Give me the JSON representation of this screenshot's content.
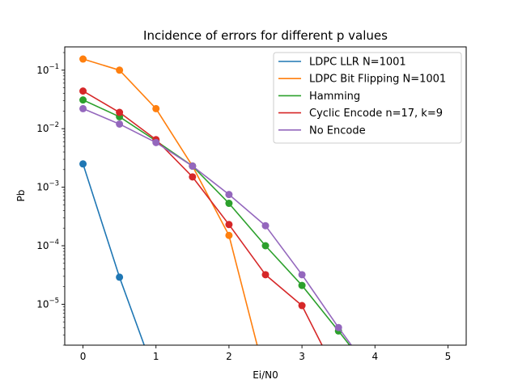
{
  "chart_data": {
    "type": "line",
    "title": "Incidence of errors for different p values",
    "xlabel": "Ei/N0",
    "ylabel": "Pb",
    "xlim": [
      -0.25,
      5.25
    ],
    "ylim": [
      2e-06,
      0.25
    ],
    "yscale": "log",
    "x_ticks": [
      0,
      1,
      2,
      3,
      4,
      5
    ],
    "x_tick_labels": [
      "0",
      "1",
      "2",
      "3",
      "4",
      "5"
    ],
    "y_ticks": [
      1e-05,
      0.0001,
      0.001,
      0.01,
      0.1
    ],
    "y_tick_labels": [
      {
        "base": "10",
        "exp": "−5"
      },
      {
        "base": "10",
        "exp": "−4"
      },
      {
        "base": "10",
        "exp": "−3"
      },
      {
        "base": "10",
        "exp": "−2"
      },
      {
        "base": "10",
        "exp": "−1"
      }
    ],
    "grid": false,
    "legend_position": "top-right",
    "x": [
      0,
      0.5,
      1,
      1.5,
      2,
      2.5,
      3,
      3.5,
      4,
      4.5,
      5
    ],
    "series": [
      {
        "name": "LDPC LLR N=1001",
        "color": "#1f77b4",
        "values": [
          0.0025,
          2.9e-05,
          0,
          0,
          0,
          0,
          0,
          0,
          0,
          0,
          0
        ]
      },
      {
        "name": "LDPC Bit Flipping N=1001",
        "color": "#ff7f0e",
        "values": [
          0.155,
          0.1,
          0.022,
          0.0023,
          0.00015,
          0,
          0,
          0,
          0,
          0,
          0
        ]
      },
      {
        "name": "Hamming",
        "color": "#2ca02c",
        "values": [
          0.031,
          0.016,
          0.0062,
          0.0023,
          0.00053,
          0.0001,
          2.1e-05,
          3.5e-06,
          0,
          0,
          0
        ]
      },
      {
        "name": "Cyclic Encode n=17, k=9",
        "color": "#d62728",
        "values": [
          0.044,
          0.019,
          0.0065,
          0.0015,
          0.00023,
          3.2e-05,
          9.5e-06,
          0,
          0,
          0,
          0
        ]
      },
      {
        "name": "No Encode",
        "color": "#9467bd",
        "values": [
          0.022,
          0.012,
          0.0058,
          0.0023,
          0.00075,
          0.00022,
          3.2e-05,
          4e-06,
          0,
          0,
          0
        ]
      }
    ]
  }
}
